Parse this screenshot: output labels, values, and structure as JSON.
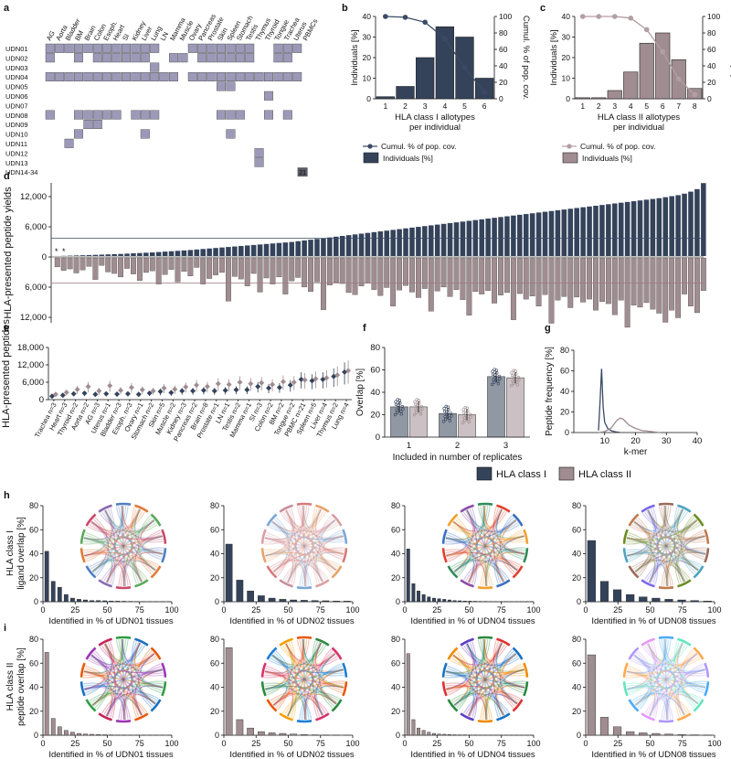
{
  "panel_labels": [
    "a",
    "b",
    "c",
    "d",
    "e",
    "f",
    "g",
    "h",
    "i"
  ],
  "colors": {
    "class1": "#34435a",
    "class2": "#a08d91",
    "class1_line": "#3a4a66",
    "class2_line": "#b39ea2",
    "matrix_fill": "#9c99b8"
  },
  "chart_data": [
    {
      "id": "a",
      "type": "heatmap",
      "columns": [
        "AG",
        "Aorta",
        "Bladder",
        "BM",
        "Brain",
        "Colon",
        "Esoph.",
        "Heart",
        "SI",
        "Kidney",
        "Liver",
        "Lung",
        "LN",
        "Mamma",
        "Muscle",
        "Ovary",
        "Pancreas",
        "Prostate",
        "Skin",
        "Spleen",
        "Stomach",
        "Testis",
        "Thymus",
        "Thyroid",
        "Tongue",
        "Trachea",
        "Uterus",
        "PBMCs"
      ],
      "rows": [
        "UDN01",
        "UDN02",
        "UDN03",
        "UDN04",
        "UDN05",
        "UDN06",
        "UDN07",
        "UDN08",
        "UDN09",
        "UDN10",
        "UDN11",
        "UDN12",
        "UDN13",
        "UDN14-34"
      ],
      "cells": [
        [
          "UDN01",
          [
            0,
            1,
            2,
            3,
            4,
            5,
            6,
            7,
            8,
            9,
            10,
            11,
            15,
            16,
            17,
            18,
            19,
            20,
            21,
            24,
            25,
            26
          ]
        ],
        [
          "UDN02",
          [
            0,
            3,
            5,
            6,
            7,
            8,
            9,
            10,
            13,
            14,
            16,
            17,
            18,
            19,
            20,
            21,
            24,
            25
          ]
        ],
        [
          "UDN03",
          [
            11
          ]
        ],
        [
          "UDN04",
          [
            0,
            1,
            2,
            3,
            4,
            5,
            6,
            7,
            8,
            9,
            10,
            11,
            12,
            13,
            15,
            16,
            17,
            18,
            19,
            20,
            21,
            22,
            23,
            24,
            25,
            26
          ]
        ],
        [
          "UDN05",
          [
            18,
            19
          ]
        ],
        [
          "UDN06",
          [
            23
          ]
        ],
        [
          "UDN07",
          []
        ],
        [
          "UDN08",
          [
            0,
            3,
            4,
            5,
            6,
            7,
            9,
            10,
            11,
            18,
            19,
            20,
            23,
            25
          ]
        ],
        [
          "UDN09",
          [
            4,
            5
          ]
        ],
        [
          "UDN10",
          [
            3,
            10,
            19
          ]
        ],
        [
          "UDN11",
          [
            2
          ]
        ],
        [
          "UDN12",
          [
            22
          ]
        ],
        [
          "UDN13",
          [
            22
          ]
        ],
        [
          "UDN14-34",
          []
        ]
      ],
      "badge": "21"
    },
    {
      "id": "b",
      "type": "bar",
      "categories": [
        "1",
        "2",
        "3",
        "4",
        "5",
        "6"
      ],
      "values": [
        1,
        6,
        20,
        35,
        30,
        10
      ],
      "line_values": [
        100,
        99,
        93,
        73,
        38,
        8
      ],
      "xlabel": "HLA class I allotypes\nper individual",
      "ylabel": "Individuals [%]",
      "y2label": "Cumul. % of pop. cov.",
      "ylim": [
        0,
        40
      ],
      "y2lim": [
        0,
        100
      ],
      "yticks": [
        "0",
        "10",
        "20",
        "30",
        "40"
      ],
      "y2ticks": [
        "0",
        "20",
        "40",
        "60",
        "80",
        "100"
      ],
      "legend": [
        "Cumul. % of pop. cov.",
        "Individuals [%]"
      ]
    },
    {
      "id": "c",
      "type": "bar",
      "categories": [
        "1",
        "2",
        "3",
        "4",
        "5",
        "6",
        "7",
        "8"
      ],
      "values": [
        0.5,
        0.5,
        4,
        13,
        27,
        32,
        19,
        5
      ],
      "line_values": [
        100,
        100,
        100,
        98,
        84,
        57,
        24,
        5
      ],
      "xlabel": "HLA class II allotypes\nper individual",
      "ylabel": "Individuals [%]",
      "y2label": "Cumul. % of pop. cov.",
      "ylim": [
        0,
        40
      ],
      "y2lim": [
        0,
        100
      ],
      "yticks": [
        "0",
        "10",
        "20",
        "30",
        "40"
      ],
      "y2ticks": [
        "0",
        "20",
        "40",
        "60",
        "80",
        "100"
      ],
      "legend": [
        "Cumul. % of pop. cov.",
        "Individuals [%]"
      ]
    },
    {
      "id": "d",
      "type": "bar",
      "ylabel": "HLA-presented peptide yields",
      "yticks_top": [
        "12,000",
        "6,000",
        "0"
      ],
      "yticks_bottom": [
        "6,000",
        "12,000"
      ],
      "ylim": [
        -15000,
        15000
      ],
      "top_mean": 3700,
      "bottom_mean": 5200,
      "markers": [
        "*",
        "*"
      ],
      "class1_values": [
        10,
        40,
        80,
        120,
        160,
        200,
        240,
        280,
        330,
        380,
        420,
        480,
        540,
        600,
        660,
        720,
        800,
        880,
        960,
        1040,
        1120,
        1200,
        1300,
        1400,
        1500,
        1600,
        1700,
        1800,
        1900,
        2000,
        2100,
        2200,
        2300,
        2400,
        2500,
        2600,
        2700,
        2800,
        2950,
        3100,
        3250,
        3400,
        3550,
        3700,
        3850,
        4000,
        4150,
        4300,
        4450,
        4600,
        4750,
        4900,
        5050,
        5200,
        5350,
        5500,
        5650,
        5800,
        5950,
        6100,
        6250,
        6400,
        6550,
        6700,
        6850,
        7000,
        7150,
        7300,
        7450,
        7600,
        7750,
        7900,
        8050,
        8200,
        8350,
        8500,
        8650,
        8800,
        8950,
        9100,
        9250,
        9400,
        9550,
        9700,
        9850,
        10000,
        10150,
        10300,
        10450,
        10600,
        10750,
        10900,
        11050,
        11200,
        11350,
        11500,
        11700,
        11900,
        12100,
        12400,
        12800,
        13300,
        14500
      ],
      "class2_values": [
        1800,
        2500,
        2200,
        3000,
        2400,
        1700,
        4300,
        1500,
        2800,
        3100,
        3800,
        2100,
        3200,
        4500,
        2900,
        2600,
        5200,
        3300,
        2300,
        4800,
        2700,
        3600,
        1900,
        5200,
        4100,
        3400,
        2900,
        8600,
        3700,
        4200,
        5600,
        3100,
        6800,
        4000,
        5200,
        3800,
        7200,
        4600,
        3900,
        5800,
        6700,
        4800,
        10300,
        5400,
        4900,
        5100,
        6900,
        7300,
        5600,
        5000,
        6300,
        7500,
        5900,
        9600,
        6400,
        5500,
        6800,
        7900,
        6100,
        10600,
        6600,
        5800,
        7700,
        6300,
        8300,
        11400,
        6700,
        7200,
        6500,
        9000,
        7400,
        6900,
        12300,
        7100,
        8200,
        7600,
        9600,
        7300,
        13000,
        8400,
        7700,
        9900,
        7800,
        8800,
        8200,
        10400,
        8700,
        9100,
        11300,
        8400,
        13800,
        9400,
        9800,
        8900,
        10200,
        11000,
        12800,
        10400,
        11900,
        7200,
        9600,
        10900,
        6500
      ]
    },
    {
      "id": "e",
      "type": "scatter",
      "ylabel": "HLA-presented peptides",
      "yticks": [
        "0",
        "6,000",
        "12,000",
        "18,000"
      ],
      "ylim": [
        0,
        18000
      ],
      "categories": [
        "Trachea n=3",
        "Heart n=3",
        "Thyroid n=2",
        "Aorta n=2",
        "AG n=3",
        "Uterus n=1",
        "Bladder n=3",
        "Esoph. n=3",
        "Ovary n=1",
        "Stomach n=2",
        "Skin n=5",
        "Muscle n=2",
        "Kidney n=3",
        "Pancreas n=2",
        "Brain n=8",
        "Prostate n=1",
        "LN n=1",
        "Testis n=2",
        "Mamma n=1",
        "SI n=3",
        "Colon n=2",
        "BM n=2",
        "Tongue n=2",
        "PBMC n=21",
        "Spleen n=5",
        "Liver n=4",
        "Thymus n=2",
        "Lung n=4"
      ],
      "class1_means": [
        1200,
        1500,
        2000,
        2200,
        1800,
        2000,
        1900,
        2000,
        1800,
        2200,
        2800,
        2400,
        3000,
        3000,
        3200,
        3000,
        3200,
        3400,
        3400,
        4500,
        4000,
        4200,
        5000,
        7000,
        6500,
        7000,
        8000,
        9500
      ],
      "class2_means": [
        1800,
        2500,
        3500,
        4500,
        3000,
        4800,
        3200,
        4200,
        3400,
        3000,
        4000,
        3600,
        4400,
        5000,
        4500,
        5500,
        5200,
        6000,
        5500,
        5800,
        5200,
        6200,
        6000,
        6800,
        7200,
        7500,
        8500,
        10000
      ]
    },
    {
      "id": "f",
      "type": "bar",
      "categories": [
        "1",
        "2",
        "3"
      ],
      "xlabel": "Included in number of replicates",
      "ylabel": "Overlap [%]",
      "yticks": [
        "0",
        "20",
        "40",
        "60",
        "80"
      ],
      "ylim": [
        0,
        80
      ],
      "series": [
        {
          "name": "HLA class I",
          "values": [
            27,
            21,
            54
          ]
        },
        {
          "name": "HLA class II",
          "values": [
            27,
            20,
            53
          ]
        }
      ]
    },
    {
      "id": "g",
      "type": "line",
      "xlabel": "k-mer",
      "ylabel": "Peptide frequency [%]",
      "xticks": [
        "10",
        "20",
        "30",
        "40"
      ],
      "yticks": [
        "0",
        "20",
        "40",
        "60",
        "80"
      ],
      "xlim": [
        0,
        40
      ],
      "ylim": [
        0,
        80
      ],
      "series": [
        {
          "name": "HLA class I",
          "x": [
            8,
            8.5,
            9,
            9.5,
            10,
            11,
            12,
            13,
            15
          ],
          "y": [
            2,
            30,
            62,
            25,
            10,
            4,
            2,
            1,
            0
          ]
        },
        {
          "name": "HLA class II",
          "x": [
            8,
            10,
            12,
            13,
            14,
            15,
            16,
            17,
            18,
            20,
            22,
            25,
            28
          ],
          "y": [
            0,
            1,
            4,
            8,
            12,
            14,
            13,
            10,
            7,
            4,
            2,
            1,
            0
          ]
        }
      ]
    },
    {
      "id": "h",
      "type": "bar",
      "ylabel": "HLA class I\nligand overlap [%]",
      "yticks": [
        "0",
        "20",
        "40",
        "60",
        "80"
      ],
      "xticks": [
        "0",
        "25",
        "50",
        "75",
        "100"
      ],
      "panels": [
        {
          "xlabel": "Identified in % of UDN01 tissues",
          "values": [
            42,
            17,
            12,
            6,
            3,
            2,
            1.5,
            1,
            1,
            0.8,
            0.6,
            0.5,
            0.4,
            0.3,
            0.2,
            0.2,
            0.1,
            0.1,
            0.1,
            0.1
          ]
        },
        {
          "xlabel": "Identified in % of UDN02 tissues",
          "values": [
            48,
            18,
            9,
            5,
            3,
            2,
            1.5,
            1.2,
            1,
            0.8,
            0.6,
            0.5
          ]
        },
        {
          "xlabel": "Identified in % of UDN04 tissues",
          "values": [
            44,
            15,
            9,
            6,
            4,
            3,
            2.5,
            2,
            1.5,
            1,
            0.8,
            0.6,
            0.5,
            0.4,
            0.3,
            0.3,
            0.2,
            0.2,
            0.2,
            0.2,
            0.1,
            0.1,
            0.1,
            0.1,
            0.1
          ]
        },
        {
          "xlabel": "Identified in % of UDN08 tissues",
          "values": [
            51,
            17,
            10,
            6,
            4,
            3,
            2,
            1.5,
            1,
            0.6
          ]
        }
      ]
    },
    {
      "id": "i",
      "type": "bar",
      "ylabel": "HLA class II\npeptide overlap [%]",
      "yticks": [
        "0",
        "20",
        "40",
        "60",
        "80"
      ],
      "xticks": [
        "0",
        "25",
        "50",
        "75",
        "100"
      ],
      "panels": [
        {
          "xlabel": "Identified in % of UDN01 tissues",
          "values": [
            69,
            14,
            7,
            4,
            2.5,
            1.5,
            1,
            0.8,
            0.6,
            0.4,
            0.3,
            0.2,
            0.2,
            0.1,
            0.1,
            0.1,
            0.1,
            0.1,
            0.1,
            0.1
          ]
        },
        {
          "xlabel": "Identified in % of UDN02 tissues",
          "values": [
            73,
            13,
            6,
            3,
            2,
            1.5,
            1,
            0.5,
            0.3,
            0.2,
            0.1,
            0.1
          ]
        },
        {
          "xlabel": "Identified in % of UDN04 tissues",
          "values": [
            68,
            13,
            6,
            4,
            2.5,
            1.5,
            1,
            0.8,
            0.6,
            0.4,
            0.3,
            0.3,
            0.2,
            0.2,
            0.1,
            0.1,
            0.1,
            0.1,
            0.1,
            0.1,
            0.1,
            0.1,
            0.1,
            0.1,
            0.1
          ]
        },
        {
          "xlabel": "Identified in % of UDN08 tissues",
          "values": [
            67,
            15,
            7,
            3,
            2,
            1.5,
            1,
            0.5,
            0.3,
            0.2
          ]
        }
      ]
    }
  ],
  "legend_main": [
    "HLA class I",
    "HLA class II"
  ]
}
